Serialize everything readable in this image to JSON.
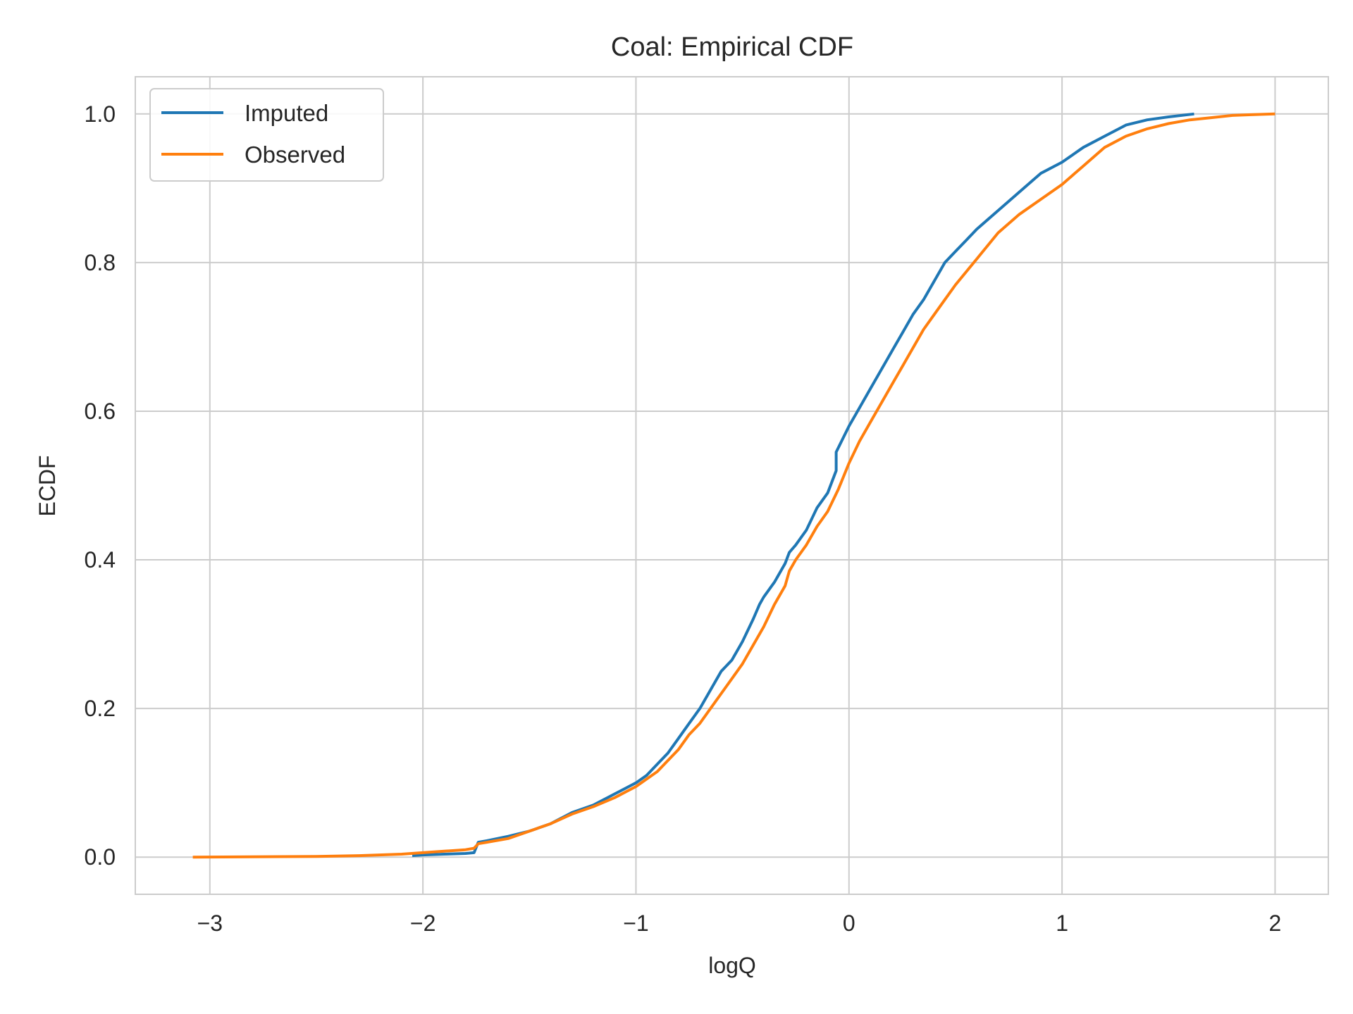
{
  "chart_data": {
    "type": "line",
    "title": "Coal: Empirical CDF",
    "xlabel": "logQ",
    "ylabel": "ECDF",
    "xlim": [
      -3.35,
      2.25
    ],
    "ylim": [
      -0.05,
      1.05
    ],
    "xticks": [
      -3,
      -2,
      -1,
      0,
      1,
      2
    ],
    "xtick_labels": [
      "−3",
      "−2",
      "−1",
      "0",
      "1",
      "2"
    ],
    "yticks": [
      0.0,
      0.2,
      0.4,
      0.6,
      0.8,
      1.0
    ],
    "ytick_labels": [
      "0.0",
      "0.2",
      "0.4",
      "0.6",
      "0.8",
      "1.0"
    ],
    "grid": true,
    "legend_position": "top-left",
    "series": [
      {
        "name": "Imputed",
        "color": "#1f77b4",
        "x": [
          -2.05,
          -2.0,
          -1.9,
          -1.8,
          -1.76,
          -1.74,
          -1.7,
          -1.6,
          -1.5,
          -1.4,
          -1.3,
          -1.2,
          -1.1,
          -1.0,
          -0.95,
          -0.9,
          -0.85,
          -0.8,
          -0.75,
          -0.7,
          -0.65,
          -0.6,
          -0.55,
          -0.5,
          -0.45,
          -0.42,
          -0.4,
          -0.35,
          -0.3,
          -0.28,
          -0.25,
          -0.2,
          -0.15,
          -0.1,
          -0.06,
          -0.06,
          0.0,
          0.05,
          0.1,
          0.15,
          0.2,
          0.25,
          0.3,
          0.35,
          0.4,
          0.45,
          0.5,
          0.55,
          0.6,
          0.7,
          0.8,
          0.9,
          1.0,
          1.1,
          1.2,
          1.3,
          1.4,
          1.5,
          1.62
        ],
        "y": [
          0.002,
          0.003,
          0.004,
          0.005,
          0.006,
          0.02,
          0.022,
          0.028,
          0.035,
          0.045,
          0.06,
          0.07,
          0.085,
          0.1,
          0.11,
          0.125,
          0.14,
          0.16,
          0.18,
          0.2,
          0.225,
          0.25,
          0.265,
          0.29,
          0.32,
          0.34,
          0.35,
          0.37,
          0.395,
          0.41,
          0.42,
          0.44,
          0.47,
          0.49,
          0.52,
          0.545,
          0.58,
          0.605,
          0.63,
          0.655,
          0.68,
          0.705,
          0.73,
          0.75,
          0.775,
          0.8,
          0.815,
          0.83,
          0.845,
          0.87,
          0.895,
          0.92,
          0.935,
          0.955,
          0.97,
          0.985,
          0.992,
          0.996,
          1.0
        ]
      },
      {
        "name": "Observed",
        "color": "#ff7f0e",
        "x": [
          -3.08,
          -2.8,
          -2.5,
          -2.3,
          -2.1,
          -2.0,
          -1.9,
          -1.8,
          -1.76,
          -1.74,
          -1.7,
          -1.6,
          -1.5,
          -1.4,
          -1.3,
          -1.2,
          -1.1,
          -1.0,
          -0.95,
          -0.9,
          -0.85,
          -0.8,
          -0.75,
          -0.7,
          -0.65,
          -0.6,
          -0.55,
          -0.5,
          -0.45,
          -0.4,
          -0.35,
          -0.3,
          -0.28,
          -0.25,
          -0.2,
          -0.15,
          -0.1,
          -0.05,
          0.0,
          0.05,
          0.1,
          0.15,
          0.2,
          0.25,
          0.3,
          0.35,
          0.4,
          0.45,
          0.5,
          0.6,
          0.7,
          0.8,
          0.9,
          1.0,
          1.1,
          1.2,
          1.3,
          1.4,
          1.5,
          1.6,
          1.7,
          1.8,
          1.9,
          2.0
        ],
        "y": [
          0.0,
          0.0005,
          0.001,
          0.002,
          0.004,
          0.006,
          0.008,
          0.01,
          0.012,
          0.018,
          0.02,
          0.025,
          0.035,
          0.045,
          0.058,
          0.068,
          0.08,
          0.095,
          0.105,
          0.115,
          0.13,
          0.145,
          0.165,
          0.18,
          0.2,
          0.22,
          0.24,
          0.26,
          0.285,
          0.31,
          0.34,
          0.365,
          0.385,
          0.4,
          0.42,
          0.445,
          0.465,
          0.495,
          0.53,
          0.56,
          0.585,
          0.61,
          0.635,
          0.66,
          0.685,
          0.71,
          0.73,
          0.75,
          0.77,
          0.805,
          0.84,
          0.865,
          0.885,
          0.905,
          0.93,
          0.955,
          0.97,
          0.98,
          0.987,
          0.992,
          0.995,
          0.998,
          0.999,
          1.0
        ]
      }
    ]
  }
}
